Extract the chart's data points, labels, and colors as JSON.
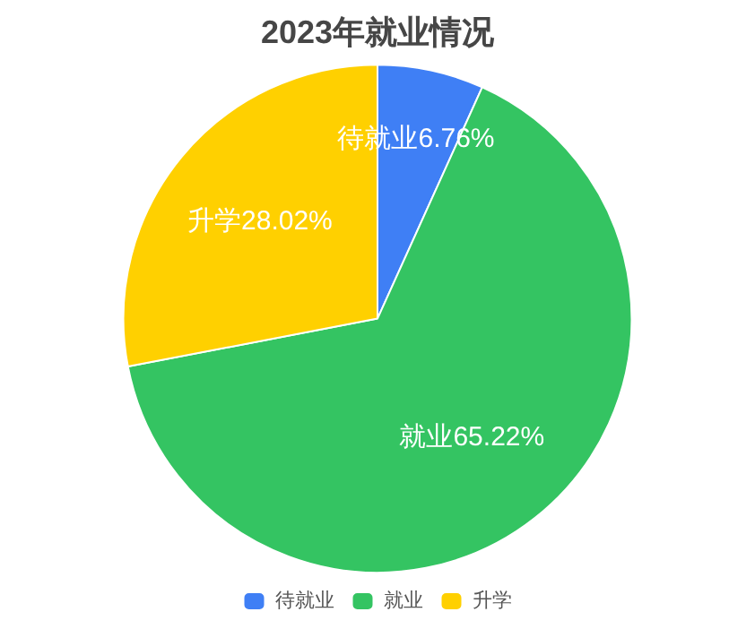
{
  "chart_data": {
    "type": "pie",
    "title": "2023年就业情况",
    "categories": [
      "待就业",
      "就业",
      "升学"
    ],
    "values": [
      6.76,
      65.22,
      28.02
    ],
    "colors": [
      "#3f7ff5",
      "#34c462",
      "#ffd000"
    ],
    "value_labels": [
      "待就业6.76%",
      "就业65.22%",
      "升学28.02%"
    ],
    "legend": "bottom"
  }
}
